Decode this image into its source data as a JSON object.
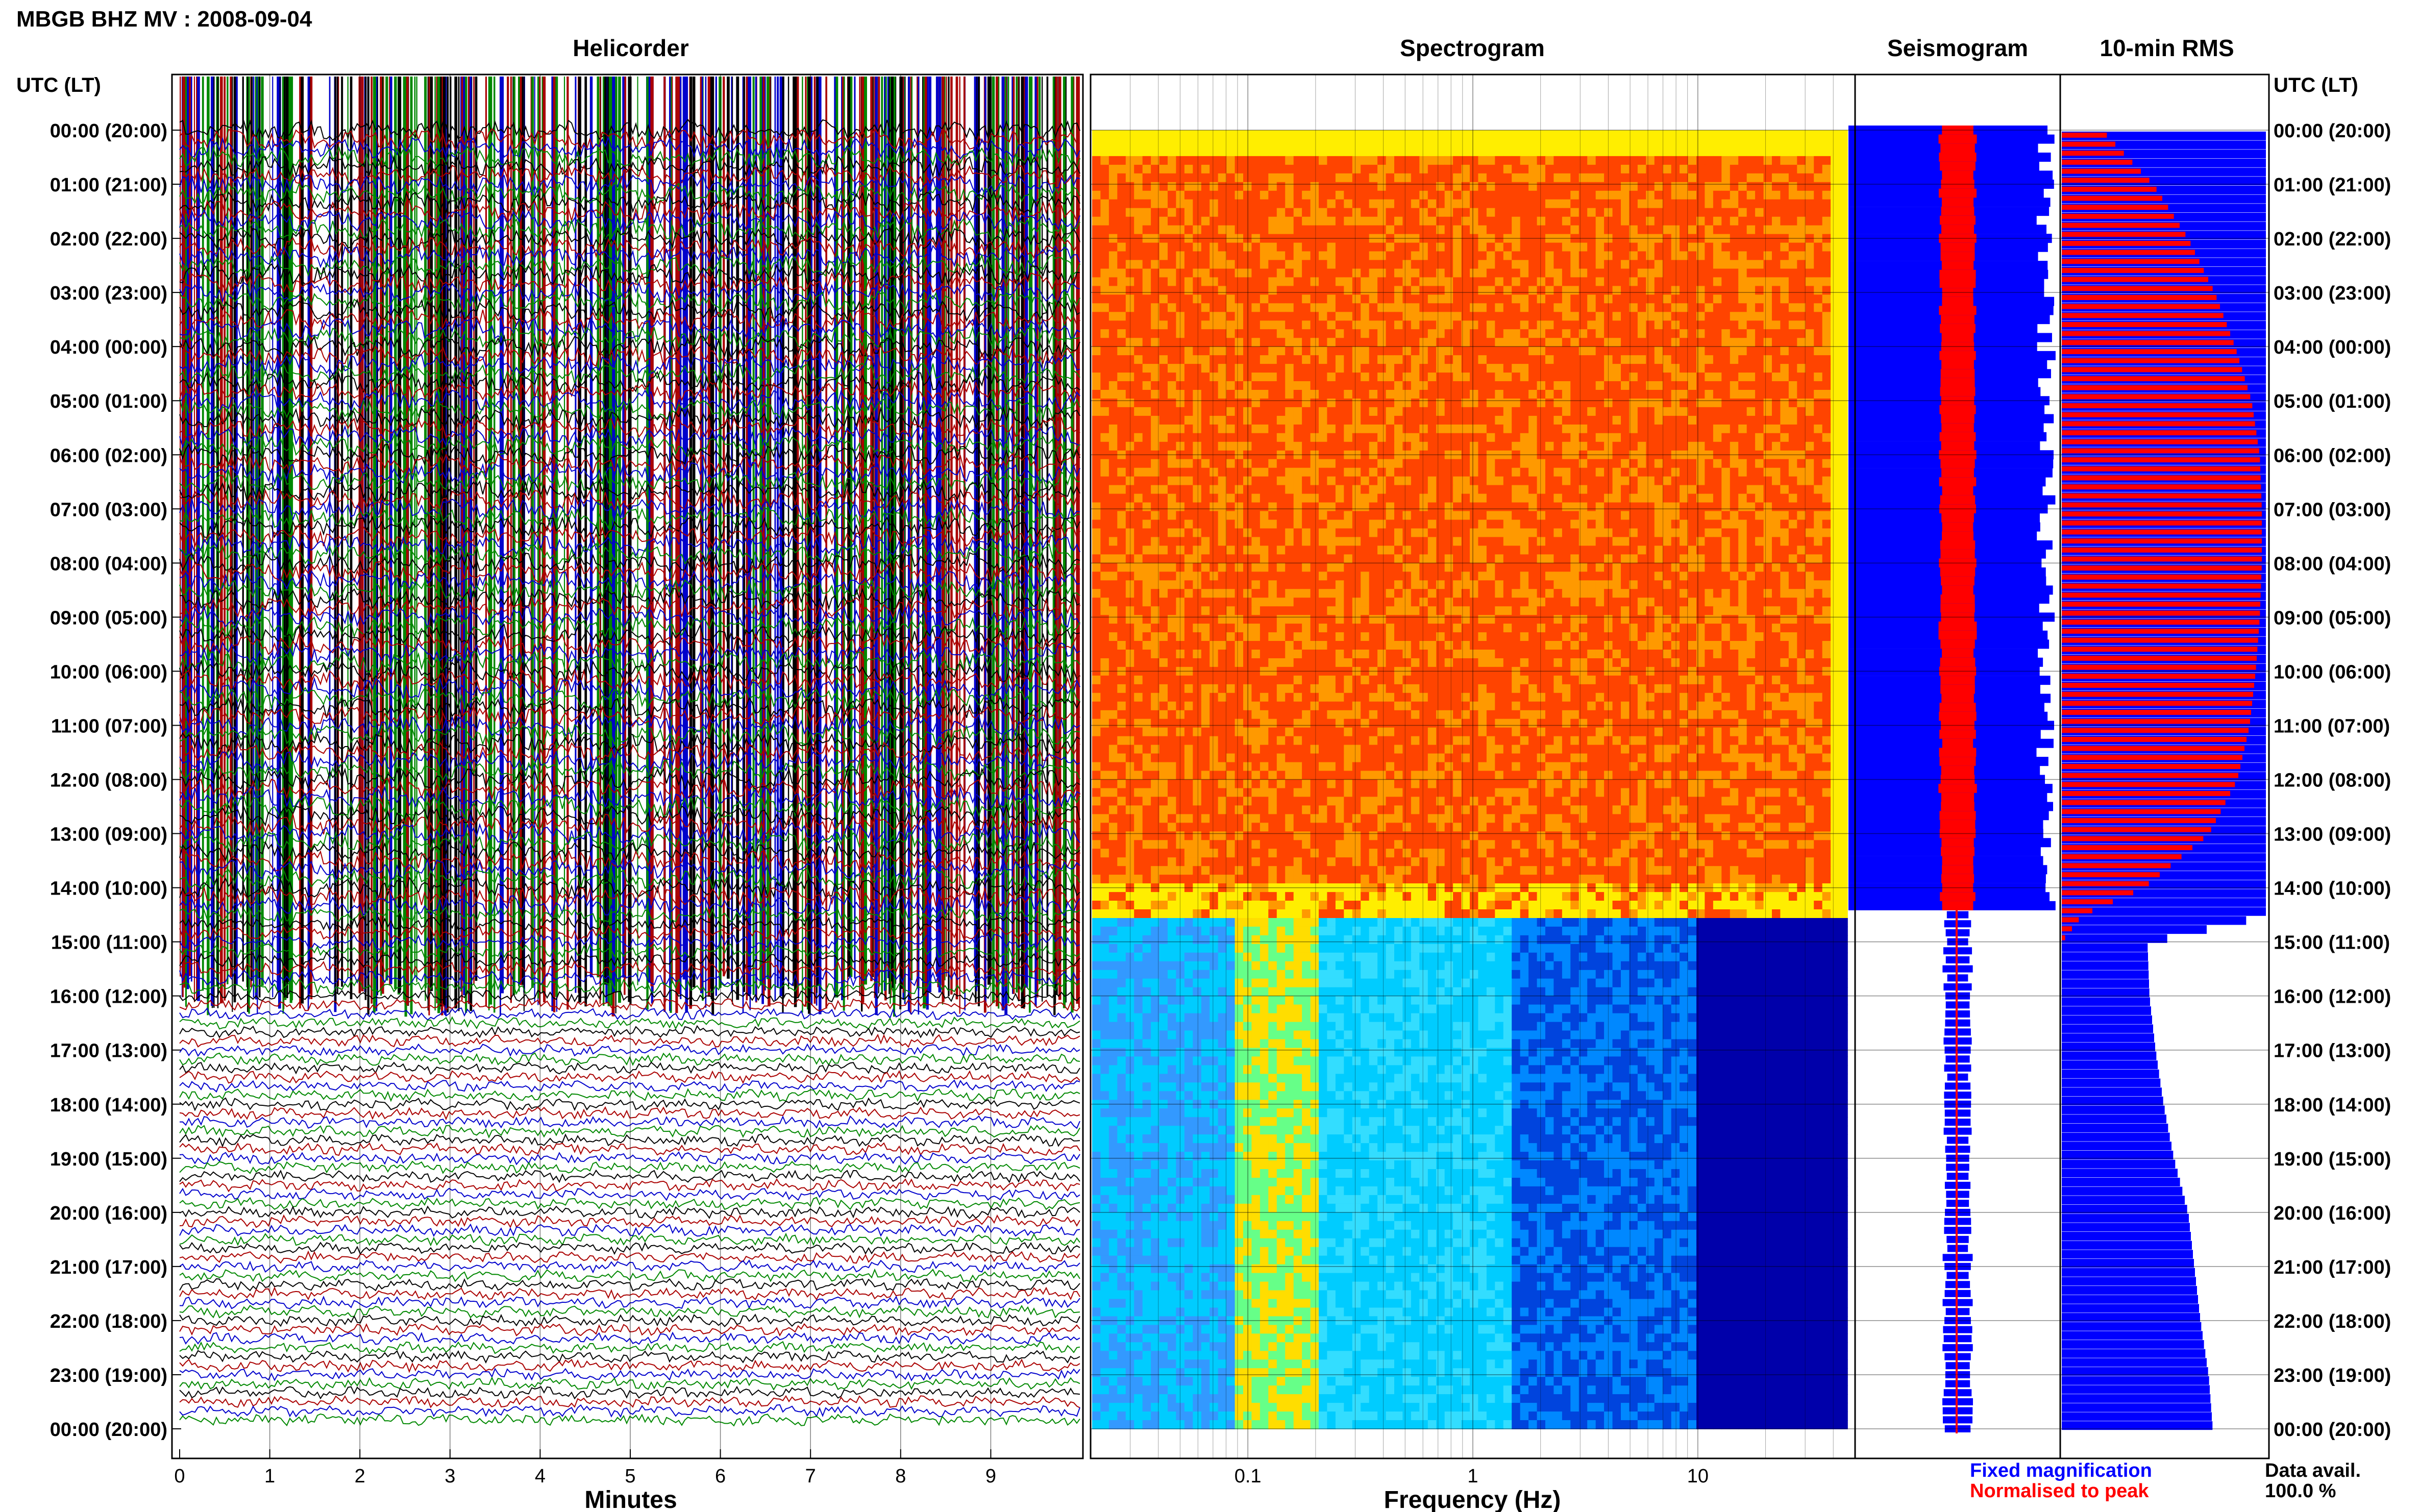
{
  "header": {
    "title": "MBGB BHZ MV : 2008-09-04"
  },
  "panels": {
    "helicorder": "Helicorder",
    "spectrogram": "Spectrogram",
    "seismogram": "Seismogram",
    "rms": "10-min RMS"
  },
  "axes": {
    "time_label": "UTC (LT)",
    "x_minutes_label": "Minutes",
    "x_freq_label": "Frequency (Hz)"
  },
  "legend": {
    "fixed": "Fixed magnification",
    "normalised": "Normalised to peak",
    "fixed_color": "#0000ff",
    "normalised_color": "#ff0000"
  },
  "data_avail": {
    "label": "Data avail.",
    "value": "100.0 %"
  },
  "colors": {
    "trace_cycle": [
      "#000000",
      "#aa0000",
      "#0000cc",
      "#008800"
    ],
    "spectrogram_high": [
      "#ffee00",
      "#ff9900",
      "#ff4400"
    ],
    "spectrogram_low": [
      "#00ccff",
      "#66ff88",
      "#ffdd00",
      "#0000aa"
    ]
  },
  "chart_data": {
    "type": "heatmap",
    "station": "MBGB BHZ MV",
    "date": "2008-09-04",
    "time_ticks": [
      "00:00 (20:00)",
      "01:00 (21:00)",
      "02:00 (22:00)",
      "03:00 (23:00)",
      "04:00 (00:00)",
      "05:00 (01:00)",
      "06:00 (02:00)",
      "07:00 (03:00)",
      "08:00 (04:00)",
      "09:00 (05:00)",
      "10:00 (06:00)",
      "11:00 (07:00)",
      "12:00 (08:00)",
      "13:00 (09:00)",
      "14:00 (10:00)",
      "15:00 (11:00)",
      "16:00 (12:00)",
      "17:00 (13:00)",
      "18:00 (14:00)",
      "19:00 (15:00)",
      "20:00 (16:00)",
      "21:00 (17:00)",
      "22:00 (18:00)",
      "23:00 (19:00)",
      "00:00 (20:00)"
    ],
    "minutes_ticks": [
      "0",
      "1",
      "2",
      "3",
      "4",
      "5",
      "6",
      "7",
      "8",
      "9"
    ],
    "minutes_range": [
      0,
      10
    ],
    "freq_ticks": [
      "0.1",
      "1",
      "10"
    ],
    "freq_range": [
      0.02,
      50
    ],
    "freq_scale": "log",
    "saturated_until_hour": 14.5,
    "rms_profile": {
      "hours": [
        0,
        1,
        2,
        3,
        4,
        5,
        6,
        7,
        8,
        9,
        10,
        11,
        12,
        13,
        14,
        14.5,
        15,
        16,
        17,
        18,
        19,
        20,
        21,
        22,
        23,
        24
      ],
      "red_fraction": [
        0.2,
        0.45,
        0.62,
        0.75,
        0.85,
        0.93,
        0.97,
        0.98,
        0.98,
        0.97,
        0.95,
        0.92,
        0.86,
        0.72,
        0.4,
        0.1,
        0,
        0,
        0,
        0,
        0,
        0,
        0,
        0,
        0,
        0
      ],
      "blue_fraction": [
        1,
        1,
        1,
        1,
        1,
        1,
        1,
        1,
        1,
        1,
        1,
        1,
        1,
        1,
        1,
        1,
        0.42,
        0.43,
        0.46,
        0.5,
        0.55,
        0.62,
        0.65,
        0.68,
        0.72,
        0.74
      ]
    },
    "seismogram_profile": {
      "blue_full_until_hour": 14.5,
      "blue_halfwidth_after": 0.1,
      "red_halfwidth_before": 0.15
    }
  }
}
